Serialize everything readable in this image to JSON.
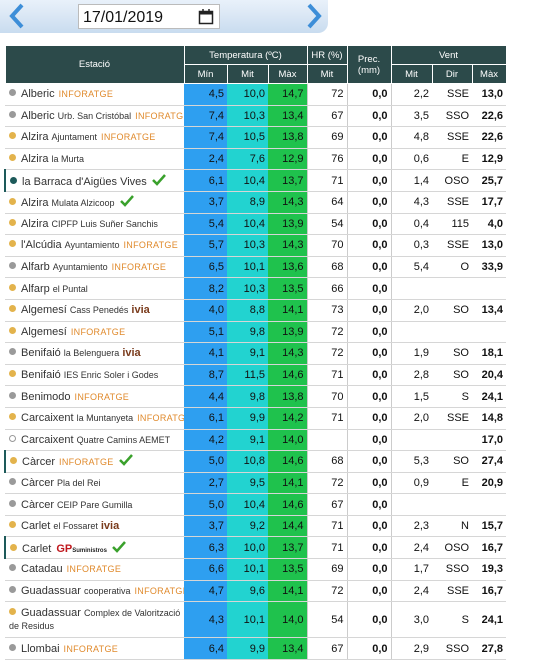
{
  "header": {
    "date": "17/01/2019"
  },
  "table": {
    "columns": {
      "station": "Estació",
      "temperature": "Temperatura (ºC)",
      "temp_min": "Mín",
      "temp_mit": "Mit",
      "temp_max": "Màx",
      "humidity": "HR (%)",
      "humidity_mit": "Mit",
      "precipitation": "Prec. (mm)",
      "wind": "Vent",
      "wind_mit": "Mit",
      "wind_dir": "Dir",
      "wind_max": "Màx"
    },
    "rows": [
      {
        "station": "Alberic",
        "tag": "INFORATGE",
        "dot": "#9a9a9a",
        "cells": [
          "4,5",
          "10,0",
          "14,7",
          "72",
          "0,0",
          "2,2",
          "SSE",
          "13,0"
        ]
      },
      {
        "station": "Alberic",
        "detail": "Urb. San Cristóbal",
        "tag": "INFORATGE",
        "dot": "#9a9a9a",
        "cells": [
          "7,4",
          "10,3",
          "13,4",
          "67",
          "0,0",
          "3,5",
          "SSO",
          "22,6"
        ]
      },
      {
        "station": "Alzira",
        "detail": "Ajuntament",
        "tag": "INFORATGE",
        "dot": "#e3b34c",
        "cells": [
          "7,4",
          "10,5",
          "13,8",
          "69",
          "0,0",
          "4,8",
          "SSE",
          "22,6"
        ]
      },
      {
        "station": "Alzira",
        "detail": "la Murta",
        "dot": "#e3b34c",
        "cells": [
          "2,4",
          "7,6",
          "12,9",
          "76",
          "0,0",
          "0,6",
          "E",
          "12,9"
        ]
      },
      {
        "station": "la Barraca d'Aigües Vives",
        "check": true,
        "highlight": true,
        "dot": "#1d5a5a",
        "cells": [
          "6,1",
          "10,4",
          "13,7",
          "71",
          "0,0",
          "1,4",
          "OSO",
          "25,7"
        ]
      },
      {
        "station": "Alzira",
        "detail": "Mulata Alzicoop",
        "check": true,
        "dot": "#e3b34c",
        "cells": [
          "3,7",
          "8,9",
          "14,3",
          "64",
          "0,0",
          "4,3",
          "SSE",
          "17,7"
        ]
      },
      {
        "station": "Alzira",
        "detail": "CIPFP Luis Suñer Sanchis",
        "dot": "#e3b34c",
        "cells": [
          "5,4",
          "10,4",
          "13,9",
          "54",
          "0,0",
          "0,4",
          "115",
          "4,0"
        ]
      },
      {
        "station": "l'Alcúdia",
        "detail": "Ayuntamiento",
        "tag": "INFORATGE",
        "dot": "#e3b34c",
        "cells": [
          "5,7",
          "10,3",
          "14,3",
          "70",
          "0,0",
          "0,3",
          "SSE",
          "13,0"
        ]
      },
      {
        "station": "Alfarb",
        "detail": "Ayuntamiento",
        "tag": "INFORATGE",
        "dot": "#9a9a9a",
        "cells": [
          "6,5",
          "10,1",
          "13,6",
          "68",
          "0,0",
          "5,4",
          "O",
          "33,9"
        ]
      },
      {
        "station": "Alfarp",
        "detail": "el Puntal",
        "dot": "#e3b34c",
        "cells": [
          "8,2",
          "10,3",
          "13,5",
          "66",
          "0,0",
          null,
          null,
          null
        ]
      },
      {
        "station": "Algemesí",
        "detail": "Cass Penedés",
        "tag": "ivia",
        "dot": "#e3b34c",
        "cells": [
          "4,0",
          "8,8",
          "14,1",
          "73",
          "0,0",
          "2,0",
          "SO",
          "13,4"
        ]
      },
      {
        "station": "Algemesí",
        "tag": "INFORATGE",
        "dot": "#e3b34c",
        "cells": [
          "5,1",
          "9,8",
          "13,9",
          "72",
          "0,0",
          null,
          null,
          null
        ]
      },
      {
        "station": "Benifaió",
        "detail": "la Belenguera",
        "tag": "ivia",
        "dot": "#9a9a9a",
        "cells": [
          "4,1",
          "9,1",
          "14,3",
          "72",
          "0,0",
          "1,9",
          "SO",
          "18,1"
        ]
      },
      {
        "station": "Benifaió",
        "detail": "IES Enric Soler i Godes",
        "dot": "#e3b34c",
        "cells": [
          "8,7",
          "11,5",
          "14,6",
          "71",
          "0,0",
          "2,8",
          "SO",
          "20,4"
        ]
      },
      {
        "station": "Benimodo",
        "tag": "INFORATGE",
        "dot": "#9a9a9a",
        "cells": [
          "4,4",
          "9,8",
          "13,8",
          "70",
          "0,0",
          "1,5",
          "S",
          "24,1"
        ]
      },
      {
        "station": "Carcaixent",
        "detail": "la Muntanyeta",
        "tag": "INFORATGE",
        "dot": "#e3b34c",
        "cells": [
          "6,1",
          "9,9",
          "14,2",
          "71",
          "0,0",
          "2,0",
          "SSE",
          "14,8"
        ]
      },
      {
        "station": "Carcaixent",
        "detail": "Quatre Camins AEMET",
        "dot": "none",
        "cells": [
          "4,2",
          "9,1",
          "14,0",
          null,
          "0,0",
          null,
          null,
          "17,0"
        ]
      },
      {
        "station": "Càrcer",
        "tag": "INFORATGE",
        "check": true,
        "highlight": true,
        "dot": "#e3b34c",
        "cells": [
          "5,0",
          "10,8",
          "14,6",
          "68",
          "0,0",
          "5,3",
          "SO",
          "27,4"
        ]
      },
      {
        "station": "Càrcer",
        "detail": "Pla del Rei",
        "dot": "#9a9a9a",
        "cells": [
          "2,7",
          "9,5",
          "14,1",
          "72",
          "0,0",
          "0,9",
          "E",
          "20,9"
        ]
      },
      {
        "station": "Càrcer",
        "detail": "CEIP Pare Gumilla",
        "dot": "#9a9a9a",
        "cells": [
          "5,0",
          "10,4",
          "14,6",
          "67",
          "0,0",
          null,
          null,
          null
        ]
      },
      {
        "station": "Carlet",
        "detail": "el Fossaret",
        "tag": "ivia",
        "dot": "#e3b34c",
        "cells": [
          "3,7",
          "9,2",
          "14,4",
          "71",
          "0,0",
          "2,3",
          "N",
          "15,7"
        ]
      },
      {
        "station": "Carlet",
        "tag": "GP",
        "tag_sub": "Suministros",
        "check": true,
        "highlight": true,
        "dot": "#e3b34c",
        "cells": [
          "6,3",
          "10,0",
          "13,7",
          "71",
          "0,0",
          "2,4",
          "OSO",
          "16,7"
        ]
      },
      {
        "station": "Catadau",
        "tag": "INFORATGE",
        "dot": "#9a9a9a",
        "cells": [
          "6,6",
          "10,1",
          "13,5",
          "69",
          "0,0",
          "1,7",
          "SSO",
          "19,3"
        ]
      },
      {
        "station": "Guadassuar",
        "detail": "cooperativa",
        "tag": "INFORATGE",
        "dot": "#9a9a9a",
        "cells": [
          "4,7",
          "9,6",
          "14,1",
          "72",
          "0,0",
          "2,4",
          "SSE",
          "16,7"
        ]
      },
      {
        "station": "Guadassuar",
        "detail": "Complex de Valorització de Residus",
        "dot": "#e3b34c",
        "cells": [
          "4,3",
          "10,1",
          "14,0",
          "54",
          "0,0",
          "3,0",
          "S",
          "24,1"
        ]
      },
      {
        "station": "Llombai",
        "tag": "INFORATGE",
        "dot": "#9a9a9a",
        "cells": [
          "6,4",
          "9,9",
          "13,4",
          "67",
          "0,0",
          "2,9",
          "SSO",
          "27,8"
        ]
      }
    ]
  }
}
